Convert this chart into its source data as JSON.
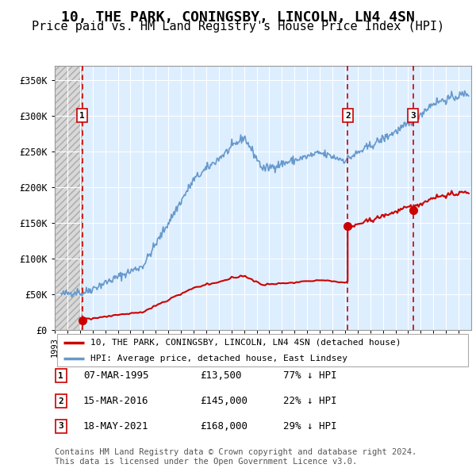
{
  "title": "10, THE PARK, CONINGSBY, LINCOLN, LN4 4SN",
  "subtitle": "Price paid vs. HM Land Registry's House Price Index (HPI)",
  "ylim": [
    0,
    370000
  ],
  "yticks": [
    0,
    50000,
    100000,
    150000,
    200000,
    250000,
    300000,
    350000
  ],
  "ytick_labels": [
    "£0",
    "£50K",
    "£100K",
    "£150K",
    "£200K",
    "£250K",
    "£300K",
    "£350K"
  ],
  "xlim_start": 1993.0,
  "xlim_end": 2026.0,
  "hpi_color": "#6699cc",
  "price_color": "#cc0000",
  "dashed_line_color": "#cc0000",
  "plot_bg_color": "#ddeeff",
  "legend_label_price": "10, THE PARK, CONINGSBY, LINCOLN, LN4 4SN (detached house)",
  "legend_label_hpi": "HPI: Average price, detached house, East Lindsey",
  "transactions": [
    {
      "num": 1,
      "date": 1995.18,
      "price": 13500,
      "label": "07-MAR-1995",
      "pct": "77% ↓ HPI"
    },
    {
      "num": 2,
      "date": 2016.21,
      "price": 145000,
      "label": "15-MAR-2016",
      "pct": "22% ↓ HPI"
    },
    {
      "num": 3,
      "date": 2021.38,
      "price": 168000,
      "label": "18-MAY-2021",
      "pct": "29% ↓ HPI"
    }
  ],
  "footnote": "Contains HM Land Registry data © Crown copyright and database right 2024.\nThis data is licensed under the Open Government Licence v3.0.",
  "title_fontsize": 13,
  "subtitle_fontsize": 11
}
